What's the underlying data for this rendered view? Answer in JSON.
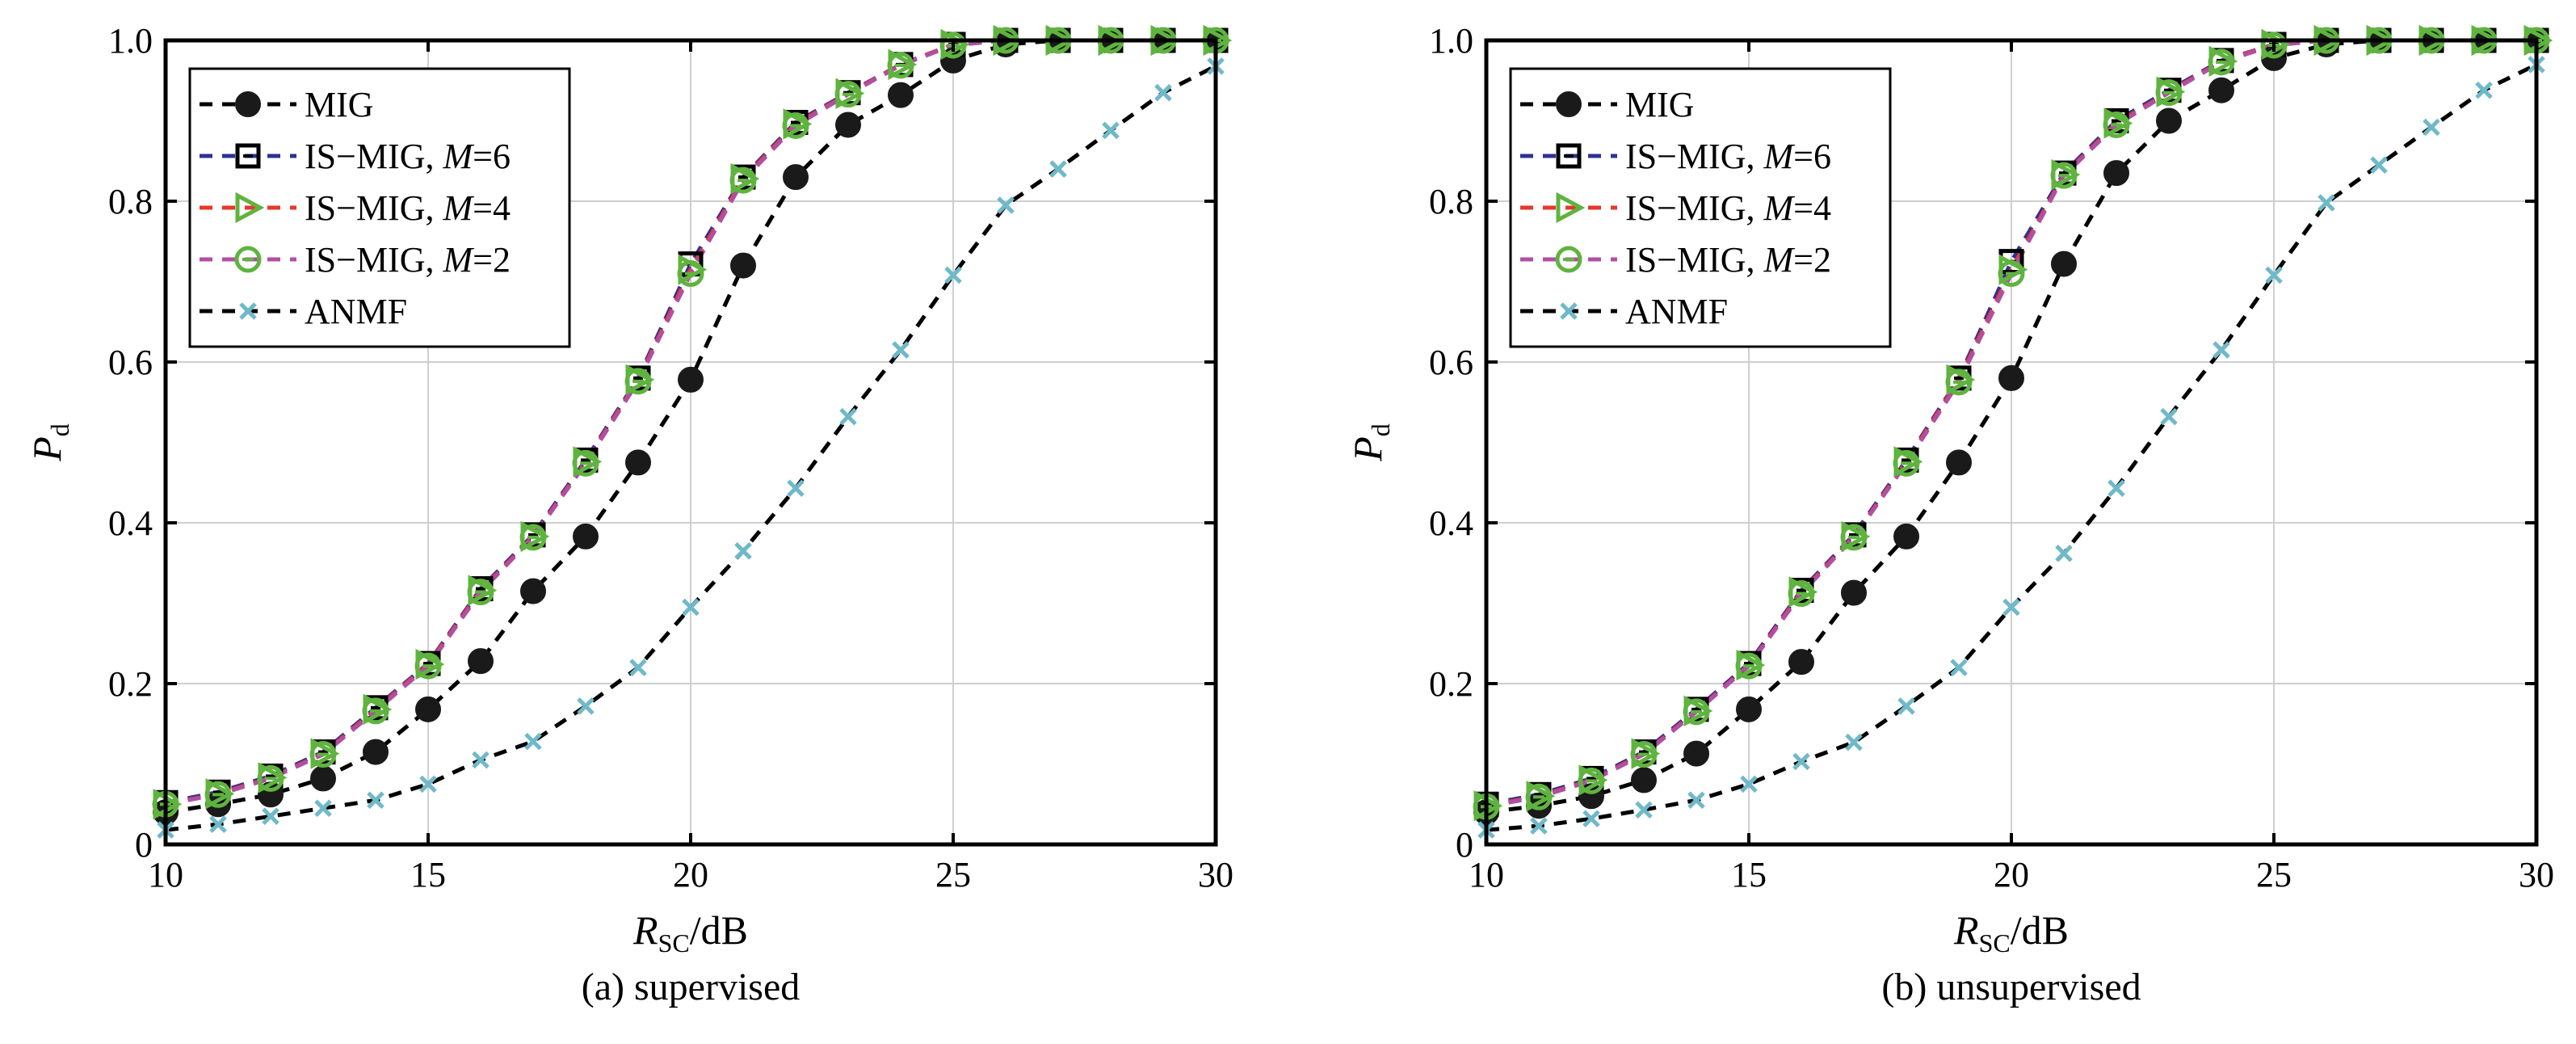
{
  "chart_data": [
    {
      "type": "line",
      "caption": "(a) supervised",
      "xlabel": {
        "main": "R",
        "sub": "SC",
        "suffix": "/dB"
      },
      "ylabel": {
        "main": "P",
        "sub": "d"
      },
      "xlim": [
        10,
        30
      ],
      "ylim": [
        0,
        1
      ],
      "xticks": [
        10,
        15,
        20,
        25,
        30
      ],
      "yticks": [
        0,
        0.2,
        0.4,
        0.6,
        0.8,
        1.0
      ],
      "xtick_labels": [
        "10",
        "15",
        "20",
        "25",
        "30"
      ],
      "ytick_labels": [
        "0",
        "0.2",
        "0.4",
        "0.6",
        "0.8",
        "1.0"
      ],
      "grid": true,
      "legend_position": "top-left",
      "x": [
        10,
        11,
        12,
        13,
        14,
        15,
        16,
        17,
        18,
        19,
        20,
        21,
        22,
        23,
        24,
        25,
        26,
        27,
        28,
        29,
        30
      ],
      "series": [
        {
          "name": "MIG",
          "label": "MIG",
          "label_m": "",
          "marker": "filled-circle",
          "color": "#000000",
          "marker_color": "#1a1a1a",
          "values": [
            0.04,
            0.05,
            0.062,
            0.082,
            0.115,
            0.168,
            0.228,
            0.315,
            0.383,
            0.475,
            0.578,
            0.72,
            0.83,
            0.895,
            0.932,
            0.975,
            0.995,
            1.0,
            1.0,
            1.0,
            1.0
          ]
        },
        {
          "name": "IS-MIG, M=6",
          "label": "IS−MIG, ",
          "label_m": "6",
          "marker": "square",
          "color": "#2e3192",
          "marker_color": "#000000",
          "values": [
            0.052,
            0.065,
            0.085,
            0.115,
            0.17,
            0.225,
            0.318,
            0.385,
            0.478,
            0.58,
            0.722,
            0.83,
            0.898,
            0.935,
            0.97,
            0.995,
            1.0,
            1.0,
            1.0,
            1.0,
            1.0
          ]
        },
        {
          "name": "IS-MIG, M=4",
          "label": "IS−MIG, ",
          "label_m": "4",
          "marker": "triangle-right",
          "color": "#e8372c",
          "marker_color": "#5fb33f",
          "values": [
            0.05,
            0.063,
            0.083,
            0.113,
            0.168,
            0.224,
            0.316,
            0.383,
            0.476,
            0.578,
            0.715,
            0.828,
            0.896,
            0.934,
            0.97,
            0.995,
            1.0,
            1.0,
            1.0,
            1.0,
            1.0
          ]
        },
        {
          "name": "IS-MIG, M=2",
          "label": "IS−MIG, ",
          "label_m": "2",
          "marker": "open-circle",
          "color": "#b04fa5",
          "marker_color": "#5fb33f",
          "values": [
            0.05,
            0.062,
            0.082,
            0.112,
            0.166,
            0.222,
            0.314,
            0.382,
            0.474,
            0.576,
            0.71,
            0.826,
            0.894,
            0.933,
            0.969,
            0.994,
            1.0,
            1.0,
            1.0,
            1.0,
            1.0
          ]
        },
        {
          "name": "ANMF",
          "label": "ANMF",
          "label_m": "",
          "marker": "x",
          "color": "#000000",
          "marker_color": "#6fb9c9",
          "values": [
            0.018,
            0.025,
            0.035,
            0.045,
            0.055,
            0.075,
            0.105,
            0.128,
            0.172,
            0.22,
            0.295,
            0.365,
            0.443,
            0.532,
            0.615,
            0.708,
            0.795,
            0.84,
            0.888,
            0.935,
            0.968
          ]
        }
      ]
    },
    {
      "type": "line",
      "caption": "(b) unsupervised",
      "xlabel": {
        "main": "R",
        "sub": "SC",
        "suffix": "/dB"
      },
      "ylabel": {
        "main": "P",
        "sub": "d"
      },
      "xlim": [
        10,
        30
      ],
      "ylim": [
        0,
        1
      ],
      "xticks": [
        10,
        15,
        20,
        25,
        30
      ],
      "yticks": [
        0,
        0.2,
        0.4,
        0.6,
        0.8,
        1.0
      ],
      "xtick_labels": [
        "10",
        "15",
        "20",
        "25",
        "30"
      ],
      "ytick_labels": [
        "0",
        "0.2",
        "0.4",
        "0.6",
        "0.8",
        "1.0"
      ],
      "grid": true,
      "legend_position": "top-left",
      "x": [
        10,
        11,
        12,
        13,
        14,
        15,
        16,
        17,
        18,
        19,
        20,
        21,
        22,
        23,
        24,
        25,
        26,
        27,
        28,
        29,
        30
      ],
      "series": [
        {
          "name": "MIG",
          "label": "MIG",
          "label_m": "",
          "marker": "filled-circle",
          "color": "#000000",
          "marker_color": "#1a1a1a",
          "values": [
            0.04,
            0.048,
            0.06,
            0.08,
            0.113,
            0.168,
            0.227,
            0.313,
            0.383,
            0.475,
            0.58,
            0.722,
            0.835,
            0.9,
            0.938,
            0.978,
            0.995,
            1.0,
            1.0,
            1.0,
            1.0
          ]
        },
        {
          "name": "IS-MIG, M=6",
          "label": "IS−MIG, ",
          "label_m": "6",
          "marker": "square",
          "color": "#2e3192",
          "marker_color": "#000000",
          "values": [
            0.05,
            0.062,
            0.082,
            0.115,
            0.168,
            0.225,
            0.316,
            0.385,
            0.478,
            0.58,
            0.725,
            0.835,
            0.9,
            0.938,
            0.975,
            0.995,
            1.0,
            1.0,
            1.0,
            1.0,
            1.0
          ]
        },
        {
          "name": "IS-MIG, M=4",
          "label": "IS−MIG, ",
          "label_m": "4",
          "marker": "triangle-right",
          "color": "#e8372c",
          "marker_color": "#5fb33f",
          "values": [
            0.048,
            0.06,
            0.08,
            0.113,
            0.166,
            0.223,
            0.314,
            0.383,
            0.476,
            0.578,
            0.715,
            0.833,
            0.897,
            0.936,
            0.974,
            0.995,
            1.0,
            1.0,
            1.0,
            1.0,
            1.0
          ]
        },
        {
          "name": "IS-MIG, M=2",
          "label": "IS−MIG, ",
          "label_m": "2",
          "marker": "open-circle",
          "color": "#b04fa5",
          "marker_color": "#5fb33f",
          "values": [
            0.047,
            0.059,
            0.079,
            0.112,
            0.165,
            0.222,
            0.312,
            0.382,
            0.474,
            0.575,
            0.71,
            0.832,
            0.895,
            0.935,
            0.973,
            0.994,
            1.0,
            1.0,
            1.0,
            1.0,
            1.0
          ]
        },
        {
          "name": "ANMF",
          "label": "ANMF",
          "label_m": "",
          "marker": "x",
          "color": "#000000",
          "marker_color": "#6fb9c9",
          "values": [
            0.018,
            0.023,
            0.032,
            0.043,
            0.055,
            0.075,
            0.103,
            0.127,
            0.172,
            0.22,
            0.295,
            0.362,
            0.443,
            0.532,
            0.615,
            0.708,
            0.798,
            0.845,
            0.892,
            0.938,
            0.97
          ]
        }
      ]
    }
  ]
}
